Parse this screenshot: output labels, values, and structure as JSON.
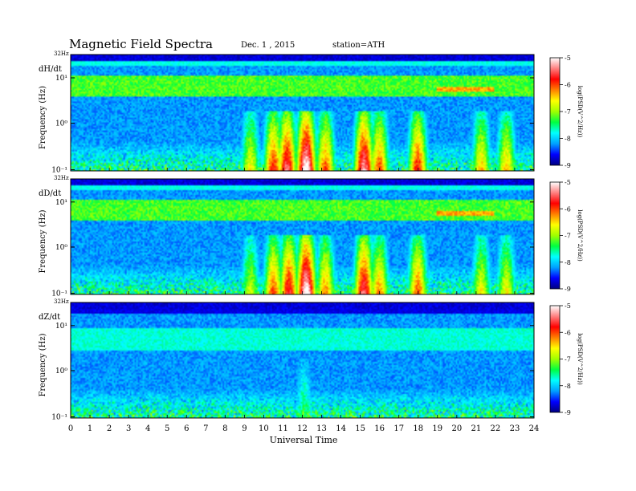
{
  "header": {
    "title": "Magnetic  Field  Spectra",
    "date": "Dec. 1  , 2015",
    "station": "station=ATH"
  },
  "chart_data": {
    "type": "heatmap",
    "xlabel": "Universal Time",
    "x_ticks": [
      "0",
      "1",
      "2",
      "3",
      "4",
      "5",
      "6",
      "7",
      "8",
      "9",
      "10",
      "11",
      "12",
      "13",
      "14",
      "15",
      "16",
      "17",
      "18",
      "19",
      "20",
      "21",
      "22",
      "23",
      "24"
    ],
    "xlim": [
      0,
      24
    ],
    "colorbar": {
      "ticks": [
        "-5",
        "-6",
        "-7",
        "-8",
        "-9"
      ],
      "range": [
        -9,
        -5
      ],
      "label": "log(PSD(V^2/Hz))",
      "colors": [
        "#000080",
        "#0000ff",
        "#00a0ff",
        "#00ffff",
        "#00ff40",
        "#a0ff00",
        "#ffff00",
        "#ff8000",
        "#ff0000",
        "#ff8080",
        "#ffffff"
      ]
    },
    "panels": [
      {
        "name": "dH/dt",
        "ylabel": "Frequency (Hz)",
        "top_label": "32Hz",
        "y_ticks": [
          "10¹",
          "10⁰",
          "10⁻¹"
        ],
        "bursts": [
          {
            "t": 9.3,
            "level": 0.55
          },
          {
            "t": 10.5,
            "level": 0.75
          },
          {
            "t": 11.2,
            "level": 0.85
          },
          {
            "t": 12.2,
            "level": 1.0
          },
          {
            "t": 13.2,
            "level": 0.7
          },
          {
            "t": 15.2,
            "level": 0.9
          },
          {
            "t": 16.0,
            "level": 0.7
          },
          {
            "t": 18.0,
            "level": 0.75
          },
          {
            "t": 21.3,
            "level": 0.6
          },
          {
            "t": 22.6,
            "level": 0.6
          }
        ]
      },
      {
        "name": "dD/dt",
        "ylabel": "Frequency (Hz)",
        "top_label": "32Hz",
        "y_ticks": [
          "10¹",
          "10⁰",
          "10⁻¹"
        ],
        "bursts": [
          {
            "t": 9.3,
            "level": 0.5
          },
          {
            "t": 10.5,
            "level": 0.7
          },
          {
            "t": 11.3,
            "level": 0.8
          },
          {
            "t": 12.2,
            "level": 1.0
          },
          {
            "t": 13.2,
            "level": 0.65
          },
          {
            "t": 15.2,
            "level": 0.85
          },
          {
            "t": 16.0,
            "level": 0.65
          },
          {
            "t": 18.0,
            "level": 0.7
          },
          {
            "t": 21.3,
            "level": 0.55
          },
          {
            "t": 22.6,
            "level": 0.55
          }
        ]
      },
      {
        "name": "dZ/dt",
        "ylabel": "Frequency (Hz)",
        "top_label": "32Hz",
        "y_ticks": [
          "10¹",
          "10⁰",
          "10⁻¹"
        ],
        "bursts": [
          {
            "t": 12.1,
            "level": 0.35
          }
        ]
      }
    ]
  }
}
